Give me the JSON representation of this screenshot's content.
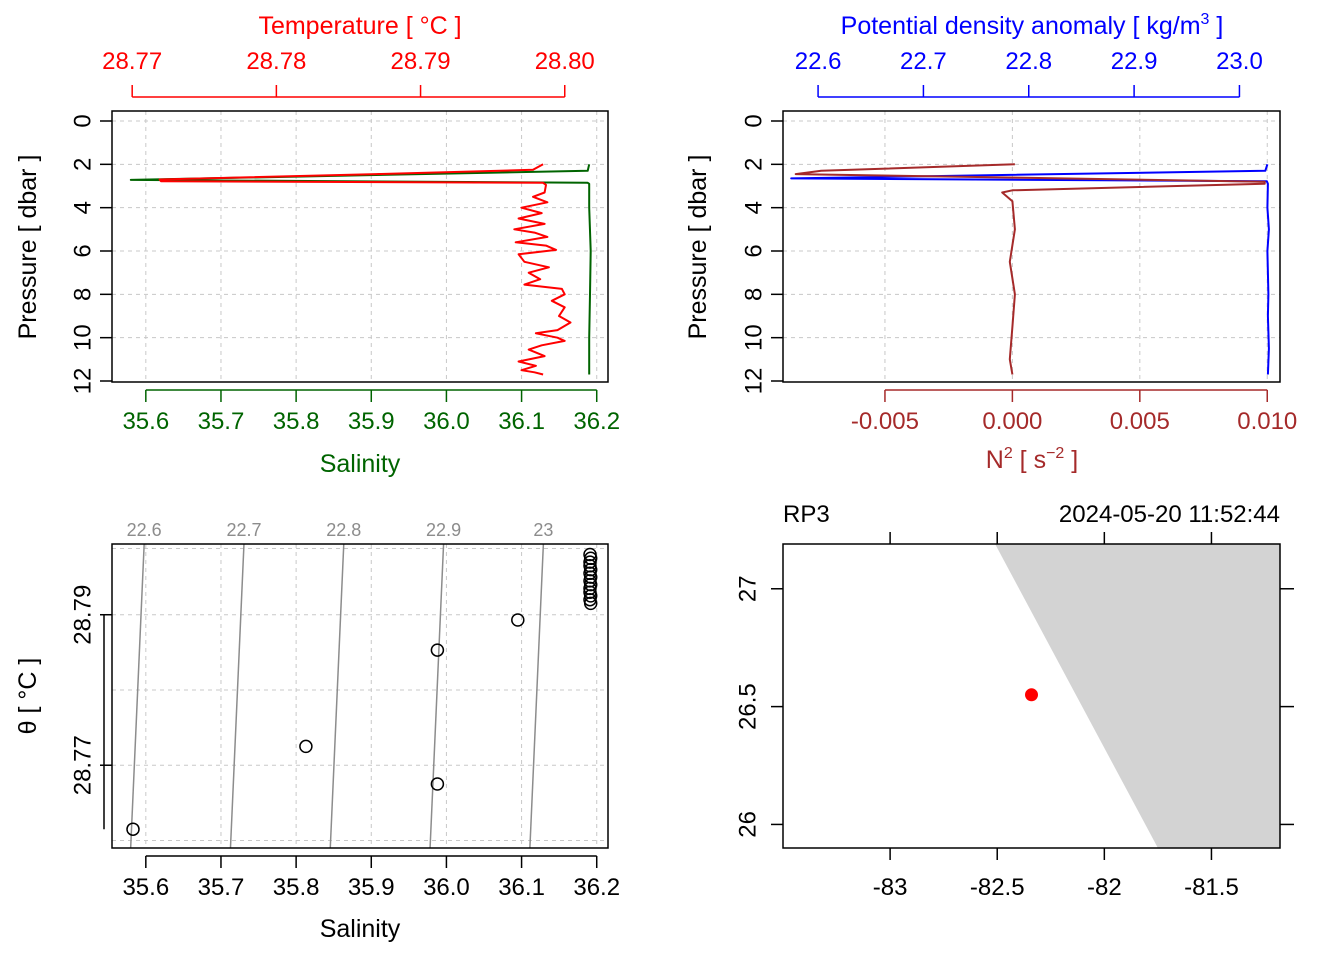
{
  "chart_data": [
    {
      "panel": "profile-temperature-salinity",
      "type": "line",
      "top_axis": {
        "title": "Temperature [ °C ]",
        "ticks": [
          "28.77",
          "28.78",
          "28.79",
          "28.80"
        ],
        "range": [
          28.7686,
          28.803
        ],
        "color": "#ff0000"
      },
      "bottom_axis": {
        "title": "Salinity",
        "ticks": [
          "35.6",
          "35.7",
          "35.8",
          "35.9",
          "36.0",
          "36.1",
          "36.2"
        ],
        "range": [
          35.555,
          36.215
        ],
        "color": "#006400"
      },
      "left_axis": {
        "title": "Pressure [ dbar ]",
        "ticks": [
          "0",
          "2",
          "4",
          "6",
          "8",
          "10",
          "12"
        ],
        "range": [
          0,
          12
        ],
        "reversed": true
      },
      "grid": true,
      "series": [
        {
          "name": "Temperature",
          "color": "#ff0000",
          "points": [
            [
              28.7985,
              2.0
            ],
            [
              28.7978,
              2.25
            ],
            [
              28.7955,
              2.3
            ],
            [
              28.7869,
              2.45
            ],
            [
              28.7719,
              2.7
            ],
            [
              28.772,
              2.78
            ],
            [
              28.7985,
              2.85
            ],
            [
              28.7987,
              2.95
            ],
            [
              28.7986,
              3.3
            ],
            [
              28.7978,
              3.5
            ],
            [
              28.7988,
              3.75
            ],
            [
              28.797,
              4.0
            ],
            [
              28.7984,
              4.25
            ],
            [
              28.7968,
              4.5
            ],
            [
              28.7986,
              4.75
            ],
            [
              28.7965,
              5.0
            ],
            [
              28.7979,
              5.15
            ],
            [
              28.7988,
              5.35
            ],
            [
              28.7966,
              5.6
            ],
            [
              28.7987,
              5.75
            ],
            [
              28.7994,
              5.95
            ],
            [
              28.7968,
              6.15
            ],
            [
              28.7972,
              6.5
            ],
            [
              28.7989,
              6.75
            ],
            [
              28.7975,
              7.0
            ],
            [
              28.7983,
              7.3
            ],
            [
              28.7972,
              7.55
            ],
            [
              28.7998,
              7.75
            ],
            [
              28.8,
              8.0
            ],
            [
              28.7991,
              8.3
            ],
            [
              28.8,
              8.6
            ],
            [
              28.7996,
              9.0
            ],
            [
              28.8004,
              9.3
            ],
            [
              28.7995,
              9.65
            ],
            [
              28.798,
              9.8
            ],
            [
              28.7995,
              10.0
            ],
            [
              28.8,
              10.15
            ],
            [
              28.7984,
              10.35
            ],
            [
              28.7975,
              10.55
            ],
            [
              28.7986,
              10.85
            ],
            [
              28.7968,
              11.1
            ],
            [
              28.798,
              11.3
            ],
            [
              28.797,
              11.5
            ],
            [
              28.7979,
              11.6
            ],
            [
              28.7985,
              11.7
            ]
          ]
        },
        {
          "name": "Salinity",
          "color": "#006400",
          "points": [
            [
              36.19,
              2.0
            ],
            [
              36.188,
              2.3
            ],
            [
              35.58,
              2.72
            ],
            [
              36.188,
              2.85
            ],
            [
              36.19,
              2.9
            ],
            [
              36.19,
              4.0
            ],
            [
              36.192,
              6.0
            ],
            [
              36.191,
              8.0
            ],
            [
              36.19,
              10.0
            ],
            [
              36.19,
              11.7
            ]
          ]
        }
      ]
    },
    {
      "panel": "profile-density-n2",
      "type": "line",
      "top_axis": {
        "title": "Potential density anomaly [ kg/m³ ]",
        "ticks": [
          "22.6",
          "22.7",
          "22.8",
          "22.9",
          "23.0"
        ],
        "range": [
          22.5667,
          23.0385
        ],
        "color": "#0000ff"
      },
      "bottom_axis": {
        "title": "N² [ s⁻² ]",
        "ticks": [
          "-0.005",
          "0.000",
          "0.005",
          "0.010"
        ],
        "range": [
          -0.009,
          0.0105
        ],
        "color": "#a52a2a"
      },
      "left_axis": {
        "title": "Pressure [ dbar ]",
        "ticks": [
          "0",
          "2",
          "4",
          "6",
          "8",
          "10",
          "12"
        ],
        "range": [
          0,
          12
        ],
        "reversed": true
      },
      "grid": true,
      "series": [
        {
          "name": "Potential density anomaly",
          "color": "#0000ff",
          "points": [
            [
              23.0265,
              2.0
            ],
            [
              23.0245,
              2.3
            ],
            [
              22.5745,
              2.65
            ],
            [
              23.026,
              2.78
            ],
            [
              23.027,
              2.9
            ],
            [
              23.0265,
              4.0
            ],
            [
              23.028,
              5.0
            ],
            [
              23.0265,
              6.0
            ],
            [
              23.0275,
              8.0
            ],
            [
              23.027,
              9.0
            ],
            [
              23.028,
              10.5
            ],
            [
              23.027,
              11.7
            ]
          ]
        },
        {
          "name": "N²",
          "color": "#a52a2a",
          "points": [
            [
              0.0001,
              2.0
            ],
            [
              -0.0075,
              2.3
            ],
            [
              -0.0085,
              2.45
            ],
            [
              0.0099,
              2.8
            ],
            [
              0.0099,
              2.9
            ],
            [
              0.0,
              3.2
            ],
            [
              -0.0004,
              3.3
            ],
            [
              0.0,
              3.7
            ],
            [
              0.0001,
              5.0
            ],
            [
              -0.0001,
              6.5
            ],
            [
              0.0001,
              8.0
            ],
            [
              0.0,
              9.5
            ],
            [
              -0.0001,
              11.0
            ],
            [
              0.0,
              11.7
            ]
          ]
        }
      ]
    },
    {
      "panel": "ts-diagram",
      "type": "scatter",
      "x_axis": {
        "title": "Salinity",
        "ticks": [
          "35.6",
          "35.7",
          "35.8",
          "35.9",
          "36.0",
          "36.1",
          "36.2"
        ],
        "range": [
          35.555,
          36.215
        ]
      },
      "y_axis": {
        "title": "θ [ °C ]",
        "ticks": [
          "28.77",
          "28.79"
        ],
        "range": [
          28.759,
          28.7994
        ]
      },
      "grid": true,
      "isopycnals": [
        {
          "label": "22.6",
          "sigma": 22.6
        },
        {
          "label": "22.7",
          "sigma": 22.7
        },
        {
          "label": "22.8",
          "sigma": 22.8
        },
        {
          "label": "22.9",
          "sigma": 22.9
        },
        {
          "label": "23",
          "sigma": 23.0
        }
      ],
      "points": [
        [
          35.583,
          28.7615
        ],
        [
          35.813,
          28.7725
        ],
        [
          35.988,
          28.7675
        ],
        [
          35.988,
          28.7853
        ],
        [
          36.095,
          28.7893
        ],
        [
          36.191,
          28.798
        ],
        [
          36.192,
          28.7975
        ],
        [
          36.191,
          28.797
        ],
        [
          36.191,
          28.7965
        ],
        [
          36.192,
          28.796
        ],
        [
          36.191,
          28.7955
        ],
        [
          36.192,
          28.795
        ],
        [
          36.191,
          28.7945
        ],
        [
          36.192,
          28.794
        ],
        [
          36.191,
          28.7935
        ],
        [
          36.191,
          28.793
        ],
        [
          36.192,
          28.7925
        ],
        [
          36.191,
          28.792
        ],
        [
          36.192,
          28.7915
        ]
      ]
    },
    {
      "panel": "station-map",
      "type": "map",
      "station": "RP3",
      "datetime": "2024-05-20 11:52:44",
      "x_axis": {
        "ticks": [
          "-83",
          "-82.5",
          "-82",
          "-81.5"
        ],
        "range": [
          -83.5,
          -81.18
        ]
      },
      "y_axis": {
        "ticks": [
          "26",
          "26.5",
          "27"
        ],
        "range": [
          25.9,
          27.19
        ]
      },
      "land": {
        "polygon": [
          [
            -82.51,
            27.19
          ],
          [
            -81.18,
            27.19
          ],
          [
            -81.18,
            25.9
          ],
          [
            -81.75,
            25.9
          ]
        ],
        "color": "#d3d3d3"
      },
      "station_point": {
        "lon": -82.34,
        "lat": 26.55,
        "color": "#ff0000"
      }
    }
  ]
}
